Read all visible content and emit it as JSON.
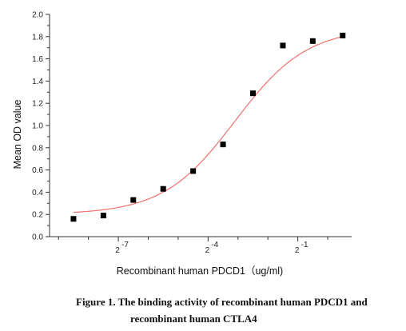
{
  "chart_data": {
    "type": "scatter",
    "ylabel": "Mean OD value",
    "xlabel": "Recombinant human PDCD1（ug/ml)",
    "ylim": [
      0,
      2.0
    ],
    "yticks": [
      "0.0",
      "0.2",
      "0.4",
      "0.6",
      "0.8",
      "1.0",
      "1.2",
      "1.4",
      "1.6",
      "1.8",
      "2.0"
    ],
    "xticks": [
      {
        "label": "2",
        "exp": "-7",
        "log2x": -7
      },
      {
        "label": "2",
        "exp": "-4",
        "log2x": -4
      },
      {
        "label": "2",
        "exp": "-1",
        "log2x": -1
      }
    ],
    "xlim_log2": [
      -9.3,
      0.8
    ],
    "grid": false,
    "x_log2": [
      -8.5,
      -7.5,
      -6.5,
      -5.5,
      -4.5,
      -3.5,
      -2.5,
      -1.5,
      -0.5,
      0.5
    ],
    "values": [
      0.16,
      0.19,
      0.33,
      0.43,
      0.59,
      0.83,
      1.29,
      1.72,
      1.76,
      1.81
    ],
    "fit": {
      "type": "4PL",
      "bottom": 0.2,
      "top": 1.88,
      "ec50_log2": -3.1,
      "hill_log2": 1.2
    },
    "colors": {
      "points": "#000000",
      "fit": "#f07070",
      "axis": "#333333"
    }
  },
  "caption": {
    "line1": "Figure 1. The binding activity of recombinant human PDCD1 and",
    "line2": "recombinant human CTLA4"
  }
}
